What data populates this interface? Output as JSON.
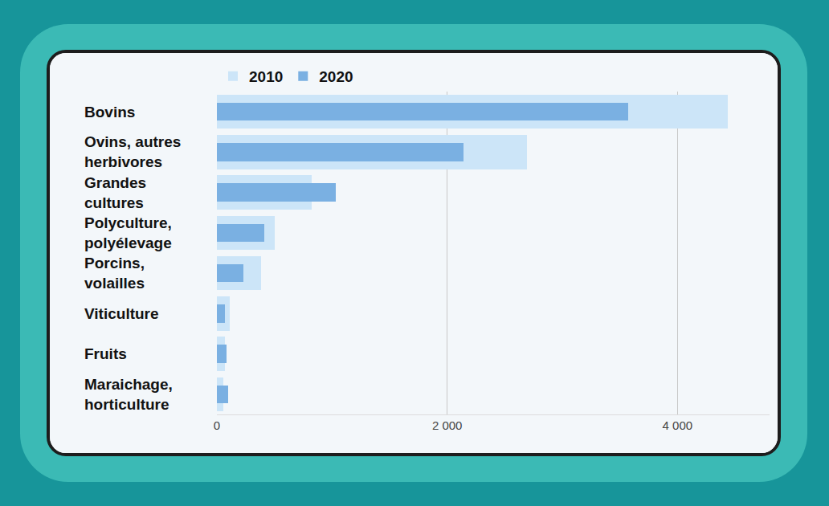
{
  "chart_data": {
    "type": "bar",
    "orientation": "horizontal",
    "categories": [
      "Bovins",
      "Ovins, autres herbivores",
      "Grandes cultures",
      "Polyculture, polyélevage",
      "Porcins, volailles",
      "Viticulture",
      "Fruits",
      "Maraichage, horticulture"
    ],
    "series": [
      {
        "name": "2010",
        "color": "#cce5f8",
        "values": [
          4440,
          2690,
          820,
          500,
          385,
          110,
          70,
          55
        ]
      },
      {
        "name": "2020",
        "color": "#7ab0e2",
        "values": [
          3570,
          2140,
          1030,
          410,
          230,
          70,
          85,
          100
        ]
      }
    ],
    "xlim": [
      0,
      4800
    ],
    "xticks": [
      0,
      {
        "value": 2000,
        "label": "2 000"
      },
      {
        "value": 4000,
        "label": "4 000"
      }
    ],
    "grid": true,
    "legend": "top left"
  }
}
